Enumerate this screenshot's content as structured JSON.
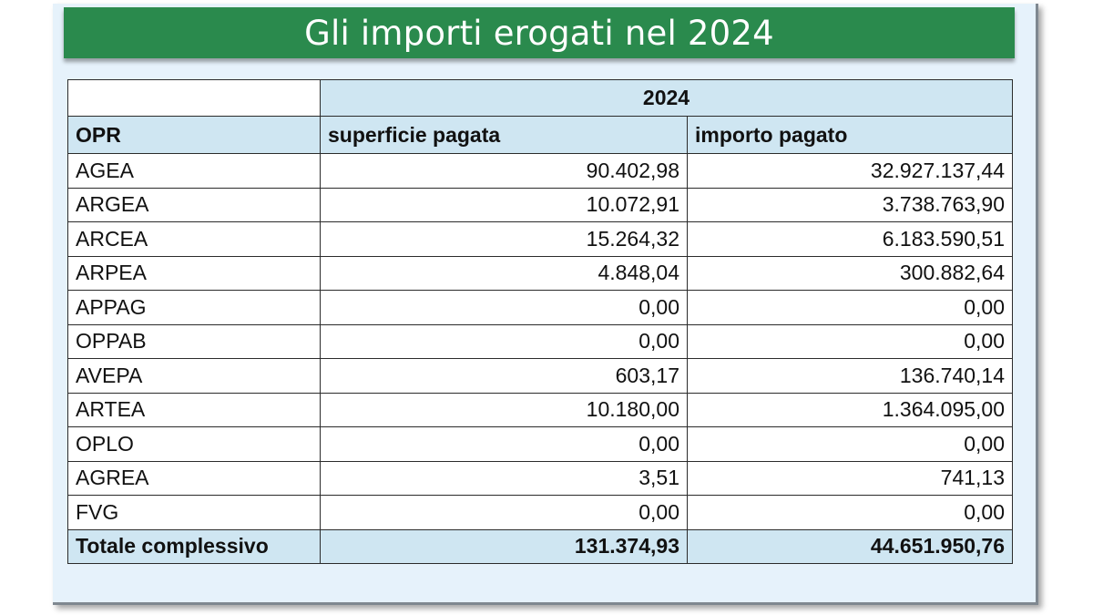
{
  "title": "Gli importi erogati nel 2024",
  "table": {
    "year_header": "2024",
    "columns": [
      "OPR",
      "superficie pagata",
      "importo pagato"
    ],
    "rows": [
      {
        "opr": "AGEA",
        "superficie": "90.402,98",
        "importo": "32.927.137,44"
      },
      {
        "opr": "ARGEA",
        "superficie": "10.072,91",
        "importo": "3.738.763,90"
      },
      {
        "opr": "ARCEA",
        "superficie": "15.264,32",
        "importo": "6.183.590,51"
      },
      {
        "opr": "ARPEA",
        "superficie": "4.848,04",
        "importo": "300.882,64"
      },
      {
        "opr": "APPAG",
        "superficie": "0,00",
        "importo": "0,00"
      },
      {
        "opr": "OPPAB",
        "superficie": "0,00",
        "importo": "0,00"
      },
      {
        "opr": "AVEPA",
        "superficie": "603,17",
        "importo": "136.740,14"
      },
      {
        "opr": "ARTEA",
        "superficie": "10.180,00",
        "importo": "1.364.095,00"
      },
      {
        "opr": "OPLO",
        "superficie": "0,00",
        "importo": "0,00"
      },
      {
        "opr": "AGREA",
        "superficie": "3,51",
        "importo": "741,13"
      },
      {
        "opr": "FVG",
        "superficie": "0,00",
        "importo": "0,00"
      }
    ],
    "total": {
      "opr": "Totale complessivo",
      "superficie": "131.374,93",
      "importo": "44.651.950,76"
    }
  },
  "colors": {
    "banner": "#2a8a4d",
    "header_fill": "#cfe6f2",
    "frame_fill": "#e6f2fb"
  }
}
